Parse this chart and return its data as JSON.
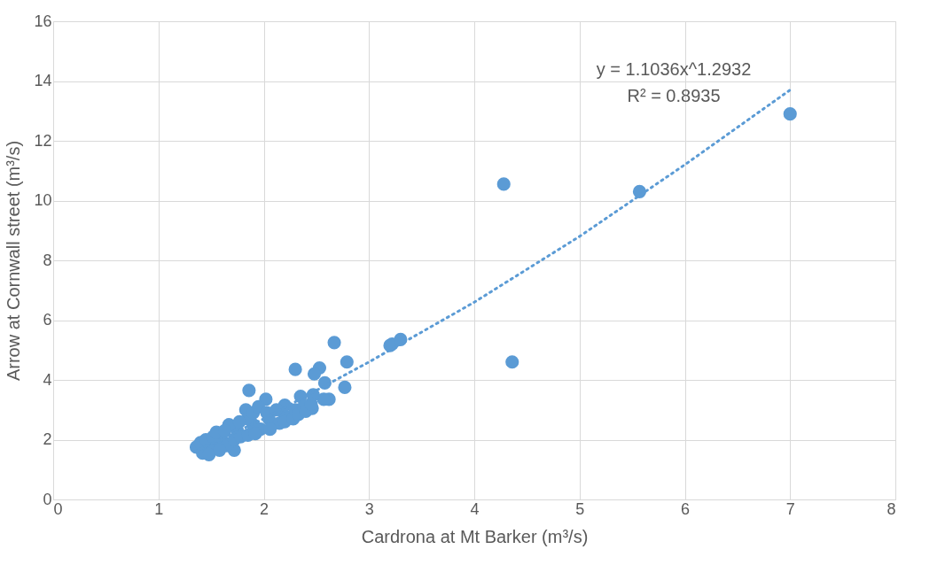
{
  "chart_data": {
    "type": "scatter",
    "xlabel": "Cardrona at Mt Barker (m³/s)",
    "ylabel": "Arrow at Cornwall street (m³/s)",
    "xlim": [
      0,
      8
    ],
    "ylim": [
      0,
      16
    ],
    "xticks": [
      0,
      1,
      2,
      3,
      4,
      5,
      6,
      7,
      8
    ],
    "yticks": [
      0,
      2,
      4,
      6,
      8,
      10,
      12,
      14,
      16
    ],
    "grid": true,
    "series": [
      {
        "marker": "circle",
        "color": "#5b9bd5",
        "x": [
          1.6,
          1.75,
          1.9,
          2.05,
          2.2,
          1.5,
          2.15,
          7.0,
          5.57,
          4.28,
          4.36,
          3.2,
          3.22,
          3.3,
          2.67,
          2.79,
          2.77,
          2.3,
          2.53,
          2.48,
          2.58,
          2.62,
          2.57,
          1.86,
          2.02,
          2.35,
          2.47,
          2.46,
          2.2,
          1.83,
          1.72,
          1.36,
          1.42,
          1.4,
          1.45,
          1.52,
          1.55,
          1.65,
          1.67,
          1.72,
          1.78,
          1.85,
          1.85,
          1.9,
          1.95,
          1.97,
          2.03,
          2.12,
          2.2,
          2.28,
          2.3,
          2.33,
          2.38,
          2.4,
          2.45,
          1.48,
          1.58,
          1.63,
          1.77,
          1.92,
          2.06
        ],
        "values": [
          2.0,
          2.3,
          2.5,
          2.7,
          2.8,
          1.85,
          2.55,
          12.9,
          10.3,
          10.55,
          4.6,
          5.15,
          5.2,
          5.35,
          5.25,
          4.6,
          3.75,
          4.35,
          4.4,
          4.2,
          3.9,
          3.35,
          3.35,
          3.65,
          3.35,
          3.45,
          3.5,
          3.05,
          3.15,
          3.0,
          1.65,
          1.75,
          1.55,
          1.9,
          2.0,
          2.1,
          2.25,
          1.8,
          2.5,
          2.0,
          2.1,
          2.15,
          2.7,
          2.9,
          3.1,
          2.35,
          2.9,
          3.0,
          2.6,
          2.7,
          3.0,
          2.85,
          3.1,
          2.95,
          3.2,
          1.5,
          1.65,
          2.3,
          2.6,
          2.2,
          2.35
        ]
      },
      {
        "type": "line",
        "line_style": "dotted",
        "color": "#5b9bd5",
        "x": [
          1.35,
          2,
          3,
          4,
          5,
          6,
          7
        ],
        "values": [
          1.6,
          2.7,
          4.6,
          6.6,
          8.8,
          11.2,
          13.7
        ]
      }
    ],
    "annotations": [
      "y = 1.1036x^1.2932",
      "R² = 0.8935"
    ]
  }
}
